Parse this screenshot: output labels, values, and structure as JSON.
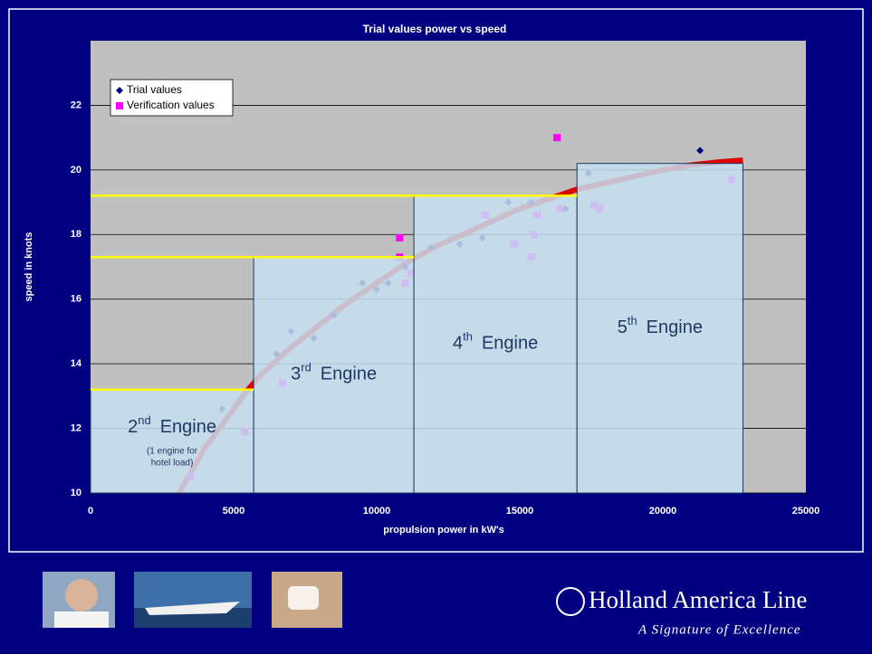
{
  "chart_data": {
    "type": "scatter",
    "title": "Trial values power vs speed",
    "x_label": "propulsion power in kW's",
    "y_label": "speed in knots",
    "xlim": [
      0,
      25000
    ],
    "ylim": [
      10,
      24
    ],
    "xticks": [
      0,
      5000,
      10000,
      15000,
      20000,
      25000
    ],
    "yticks": [
      10,
      12,
      14,
      16,
      18,
      20,
      22
    ],
    "grid": true,
    "legend": "top-left",
    "series": [
      {
        "name": "Trial values",
        "color": "#000080",
        "marker": "diamond",
        "x": [
          4600,
          6500,
          7000,
          7800,
          8500,
          9500,
          10000,
          10400,
          11000,
          11900,
          12900,
          13700,
          14600,
          15400,
          16600,
          17400,
          21300
        ],
        "y": [
          12.6,
          14.3,
          15.0,
          14.8,
          15.5,
          16.5,
          16.3,
          16.5,
          17.0,
          17.6,
          17.7,
          17.9,
          19.0,
          19.0,
          18.8,
          19.9,
          20.6
        ]
      },
      {
        "name": "Verification values",
        "color": "#ff00ff",
        "marker": "square",
        "x": [
          3500,
          5400,
          6700,
          10800,
          10800,
          11000,
          11200,
          13800,
          14800,
          15400,
          15500,
          15600,
          16300,
          16400,
          17600,
          17800,
          22400
        ],
        "y": [
          10.5,
          11.9,
          13.4,
          17.9,
          17.3,
          16.5,
          16.8,
          18.6,
          17.7,
          17.3,
          18.0,
          18.6,
          21.0,
          18.8,
          18.9,
          18.8,
          19.7
        ]
      }
    ],
    "trendline": {
      "color": "#e00000",
      "x": [
        3100,
        4000,
        5000,
        5500,
        6000,
        7000,
        8000,
        9000,
        10000,
        11000,
        12000,
        13000,
        14000,
        15000,
        16000,
        17000,
        18000,
        19000,
        20000,
        21000,
        22000,
        22800
      ],
      "y": [
        10.0,
        11.4,
        12.6,
        13.2,
        13.7,
        14.5,
        15.2,
        15.9,
        16.5,
        17.1,
        17.6,
        18.0,
        18.4,
        18.8,
        19.1,
        19.4,
        19.6,
        19.8,
        20.0,
        20.15,
        20.25,
        20.3
      ]
    },
    "boxes": [
      {
        "x0": 0,
        "x1": 5700,
        "top": 13.2,
        "number": "2",
        "suffix": "nd",
        "text": "Engine",
        "note": [
          "(1 engine for",
          "hotel load)"
        ]
      },
      {
        "x0": 5700,
        "x1": 11300,
        "top": 17.3,
        "number": "3",
        "suffix": "rd",
        "text": "Engine"
      },
      {
        "x0": 11300,
        "x1": 17000,
        "top": 19.2,
        "number": "4",
        "suffix": "th",
        "text": "Engine"
      },
      {
        "x0": 17000,
        "x1": 22800,
        "top": 20.2,
        "number": "5",
        "suffix": "th",
        "text": "Engine"
      }
    ]
  },
  "footer": {
    "brand": "Holland America Line",
    "tagline": "A Signature of Excellence"
  }
}
